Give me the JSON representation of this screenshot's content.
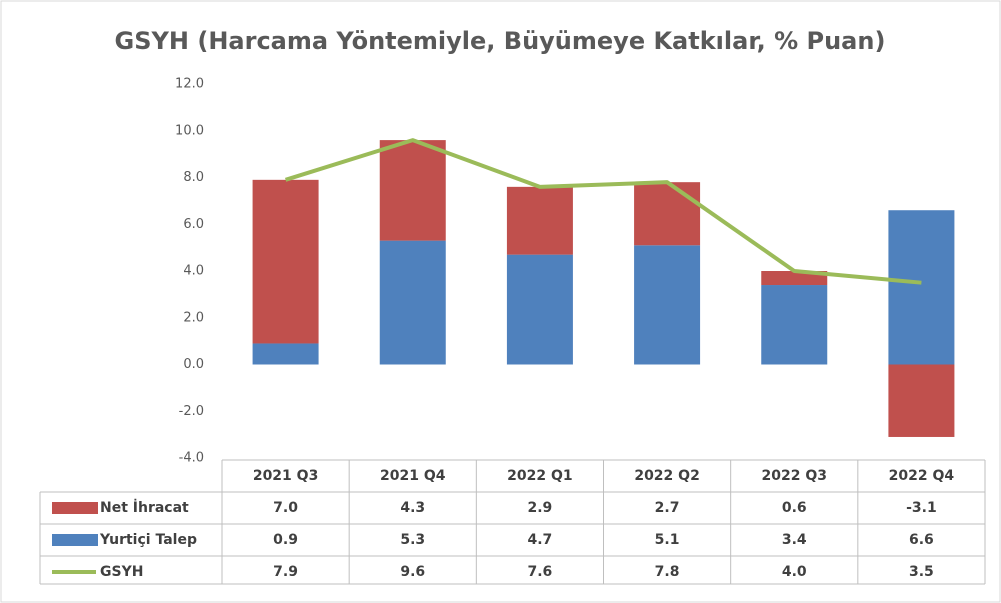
{
  "chart_data": {
    "type": "bar",
    "stacked": true,
    "title": "GSYH (Harcama Yöntemiyle, Büyümeye Katkılar, % Puan)",
    "categories": [
      "2021 Q3",
      "2021 Q4",
      "2022 Q1",
      "2022 Q2",
      "2022 Q3",
      "2022 Q4"
    ],
    "series": [
      {
        "name": "Net İhracat",
        "type": "bar",
        "color": "#c0504d",
        "values": [
          7.0,
          4.3,
          2.9,
          2.7,
          0.6,
          -3.1
        ],
        "value_labels": [
          "7.0",
          "4.3",
          "2.9",
          "2.7",
          "0.6",
          "-3.1"
        ]
      },
      {
        "name": "Yurtiçi Talep",
        "type": "bar",
        "color": "#4f81bd",
        "values": [
          0.9,
          5.3,
          4.7,
          5.1,
          3.4,
          6.6
        ],
        "value_labels": [
          "0.9",
          "5.3",
          "4.7",
          "5.1",
          "3.4",
          "6.6"
        ]
      },
      {
        "name": "GSYH",
        "type": "line",
        "color": "#9bbb59",
        "values": [
          7.9,
          9.6,
          7.6,
          7.8,
          4.0,
          3.5
        ],
        "value_labels": [
          "7.9",
          "9.6",
          "7.6",
          "7.8",
          "4.0",
          "3.5"
        ]
      }
    ],
    "ylim": [
      -4,
      12
    ],
    "yticks": [
      {
        "value": -4,
        "label": "-4.0"
      },
      {
        "value": -2,
        "label": "-2.0"
      },
      {
        "value": 0,
        "label": "0.0"
      },
      {
        "value": 2,
        "label": "2.0"
      },
      {
        "value": 4,
        "label": "4.0"
      },
      {
        "value": 6,
        "label": "6.0"
      },
      {
        "value": 8,
        "label": "8.0"
      },
      {
        "value": 10,
        "label": "10.0"
      },
      {
        "value": 12,
        "label": "12.0"
      }
    ],
    "grid": false
  }
}
